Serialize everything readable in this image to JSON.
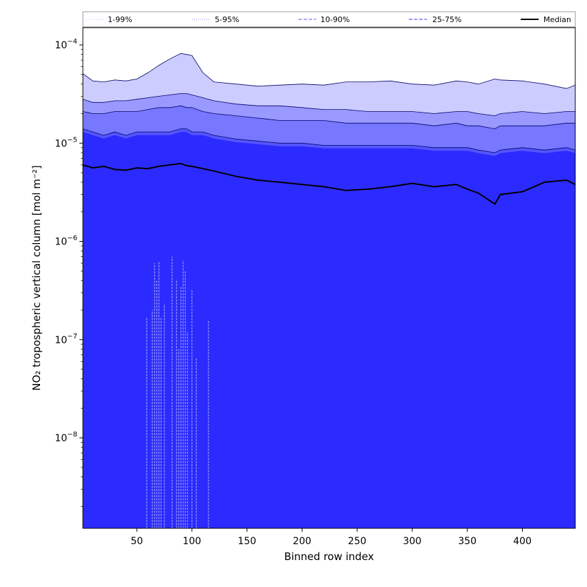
{
  "chart_data": {
    "type": "area",
    "xlabel": "Binned row index",
    "ylabel": "NO₂ tropospheric vertical column [mol m⁻²]",
    "xlim": [
      1,
      448
    ],
    "ylim": [
      1.2e-09,
      0.00015
    ],
    "yscale": "log",
    "x_ticks": [
      50,
      100,
      150,
      200,
      250,
      300,
      350,
      400
    ],
    "x_tick_labels": [
      "50",
      "100",
      "150",
      "200",
      "250",
      "300",
      "350",
      "400"
    ],
    "y_ticks": [
      1e-08,
      1e-07,
      1e-06,
      1e-05,
      0.0001
    ],
    "y_tick_labels": [
      {
        "base": "10",
        "exp": "−8"
      },
      {
        "base": "10",
        "exp": "−7"
      },
      {
        "base": "10",
        "exp": "−6"
      },
      {
        "base": "10",
        "exp": "−5"
      },
      {
        "base": "10",
        "exp": "−4"
      }
    ],
    "legend_position": "top (above plot, one row)",
    "x": [
      1,
      10,
      20,
      30,
      40,
      50,
      60,
      70,
      80,
      90,
      95,
      100,
      110,
      120,
      140,
      160,
      180,
      200,
      220,
      240,
      260,
      280,
      300,
      320,
      340,
      350,
      360,
      375,
      380,
      400,
      420,
      440,
      448
    ],
    "bands": [
      {
        "name": "1-99%",
        "color": "#ccccff",
        "line_style": "dotted",
        "lower": [
          1.2e-09,
          1.2e-09,
          1.2e-09,
          1.2e-09,
          1.2e-09,
          1.2e-09,
          1.2e-09,
          1.2e-09,
          1.2e-09,
          1.2e-09,
          1.2e-09,
          1.2e-09,
          1.2e-09,
          1.2e-09,
          1.2e-09,
          1.2e-09,
          1.2e-09,
          1.2e-09,
          1.2e-09,
          1.2e-09,
          1.2e-09,
          1.2e-09,
          1.2e-09,
          1.2e-09,
          1.2e-09,
          1.2e-09,
          1.2e-09,
          1.2e-09,
          1.2e-09,
          1.2e-09,
          1.2e-09,
          1.2e-09,
          1.2e-09
        ],
        "upper": [
          5.1e-05,
          4.3e-05,
          4.2e-05,
          4.4e-05,
          4.3e-05,
          4.5e-05,
          5.2e-05,
          6.2e-05,
          7.2e-05,
          8.2e-05,
          8e-05,
          7.8e-05,
          5.2e-05,
          4.2e-05,
          4e-05,
          3.8e-05,
          3.9e-05,
          4e-05,
          3.9e-05,
          4.2e-05,
          4.2e-05,
          4.3e-05,
          4e-05,
          3.9e-05,
          4.3e-05,
          4.2e-05,
          4e-05,
          4.5e-05,
          4.4e-05,
          4.3e-05,
          4e-05,
          3.6e-05,
          3.9e-05
        ]
      },
      {
        "name": "5-95%",
        "color": "#9999ff",
        "line_style": "dotted",
        "lower": [
          1.2e-09,
          1.2e-09,
          1.2e-09,
          1.2e-09,
          1.2e-09,
          1.2e-09,
          1.2e-09,
          1.2e-09,
          1.2e-09,
          1.2e-09,
          1.2e-09,
          1.2e-09,
          1.2e-09,
          1.2e-09,
          1.2e-09,
          1.2e-09,
          1.2e-09,
          1.2e-09,
          1.2e-09,
          1.2e-09,
          1.2e-09,
          1.2e-09,
          1.2e-09,
          1.2e-09,
          1.2e-09,
          1.2e-09,
          1.2e-09,
          1.2e-09,
          1.2e-09,
          1.2e-09,
          1.2e-09,
          1.2e-09,
          1.2e-09
        ],
        "upper": [
          2.8e-05,
          2.6e-05,
          2.6e-05,
          2.7e-05,
          2.7e-05,
          2.8e-05,
          2.9e-05,
          3e-05,
          3.1e-05,
          3.2e-05,
          3.2e-05,
          3.1e-05,
          2.9e-05,
          2.7e-05,
          2.5e-05,
          2.4e-05,
          2.4e-05,
          2.3e-05,
          2.2e-05,
          2.2e-05,
          2.1e-05,
          2.1e-05,
          2.1e-05,
          2e-05,
          2.1e-05,
          2.1e-05,
          2e-05,
          1.9e-05,
          2e-05,
          2.1e-05,
          2e-05,
          2.1e-05,
          2.1e-05
        ]
      },
      {
        "name": "10-90%",
        "color": "#7777ff",
        "line_style": "dashed",
        "lower": [
          1.2e-09,
          1.2e-09,
          1.2e-09,
          1.2e-09,
          1.2e-09,
          1.2e-09,
          1.2e-09,
          1.2e-09,
          1.2e-09,
          1.2e-09,
          1.2e-09,
          1.2e-09,
          1.2e-09,
          1.2e-09,
          1.2e-09,
          1.2e-09,
          1.2e-09,
          1.2e-09,
          1.2e-09,
          1.2e-09,
          1.2e-09,
          1.2e-09,
          1.2e-09,
          1.2e-09,
          1.2e-09,
          1.2e-09,
          1.2e-09,
          1.2e-09,
          1.2e-09,
          1.2e-09,
          1.2e-09,
          1.2e-09,
          1.2e-09
        ],
        "upper": [
          2.1e-05,
          2e-05,
          2e-05,
          2.1e-05,
          2.1e-05,
          2.1e-05,
          2.2e-05,
          2.3e-05,
          2.3e-05,
          2.4e-05,
          2.3e-05,
          2.3e-05,
          2.1e-05,
          2e-05,
          1.9e-05,
          1.8e-05,
          1.7e-05,
          1.7e-05,
          1.7e-05,
          1.6e-05,
          1.6e-05,
          1.6e-05,
          1.6e-05,
          1.5e-05,
          1.6e-05,
          1.5e-05,
          1.5e-05,
          1.4e-05,
          1.5e-05,
          1.5e-05,
          1.5e-05,
          1.6e-05,
          1.6e-05
        ]
      },
      {
        "name": "25-75%",
        "color": "#5555ff",
        "line_style": "dashed",
        "lower": [
          1.2e-09,
          1.2e-09,
          1.2e-09,
          1.2e-09,
          1.2e-09,
          1.2e-09,
          1.2e-09,
          1.2e-09,
          1.2e-09,
          1.2e-09,
          1.2e-09,
          1.2e-09,
          1.2e-09,
          1.2e-09,
          1.2e-09,
          1.2e-09,
          1.2e-09,
          1.2e-09,
          1.2e-09,
          1.2e-09,
          1.2e-09,
          1.2e-09,
          1.2e-09,
          1.2e-09,
          1.2e-09,
          1.2e-09,
          1.2e-09,
          1.2e-09,
          1.2e-09,
          1.2e-09,
          1.2e-09,
          1.2e-09,
          1.2e-09
        ],
        "upper": [
          1.4e-05,
          1.3e-05,
          1.2e-05,
          1.3e-05,
          1.2e-05,
          1.3e-05,
          1.3e-05,
          1.3e-05,
          1.3e-05,
          1.4e-05,
          1.4e-05,
          1.3e-05,
          1.3e-05,
          1.2e-05,
          1.1e-05,
          1.05e-05,
          1e-05,
          1e-05,
          9.5e-06,
          9.5e-06,
          9.5e-06,
          9.5e-06,
          9.5e-06,
          9e-06,
          9e-06,
          9e-06,
          8.5e-06,
          8e-06,
          8.5e-06,
          9e-06,
          8.5e-06,
          9e-06,
          8.5e-06
        ]
      }
    ],
    "inner_fill_color": "#2b2bff",
    "median": {
      "name": "Median",
      "color": "#000000",
      "values": [
        6e-06,
        5.6e-06,
        5.8e-06,
        5.4e-06,
        5.3e-06,
        5.6e-06,
        5.5e-06,
        5.8e-06,
        6e-06,
        6.2e-06,
        5.9e-06,
        5.8e-06,
        5.5e-06,
        5.2e-06,
        4.6e-06,
        4.2e-06,
        4e-06,
        3.8e-06,
        3.6e-06,
        3.3e-06,
        3.4e-06,
        3.6e-06,
        3.9e-06,
        3.6e-06,
        3.8e-06,
        3.4e-06,
        3.1e-06,
        2.4e-06,
        3e-06,
        3.2e-06,
        4e-06,
        4.2e-06,
        3.8e-06
      ]
    },
    "lower_spikes": {
      "color": "#8a8aff",
      "x": [
        59,
        64,
        66,
        68,
        70,
        72,
        75,
        82,
        86,
        88,
        90,
        92,
        94,
        96,
        100,
        104,
        115
      ],
      "top": [
        1.7e-07,
        2e-07,
        6e-07,
        4e-07,
        6.2e-07,
        1.7e-07,
        2.3e-07,
        7e-07,
        4.1e-07,
        8e-08,
        3.5e-07,
        6.4e-07,
        5e-07,
        1.2e-07,
        3.2e-07,
        6.5e-08,
        1.55e-07
      ]
    }
  }
}
